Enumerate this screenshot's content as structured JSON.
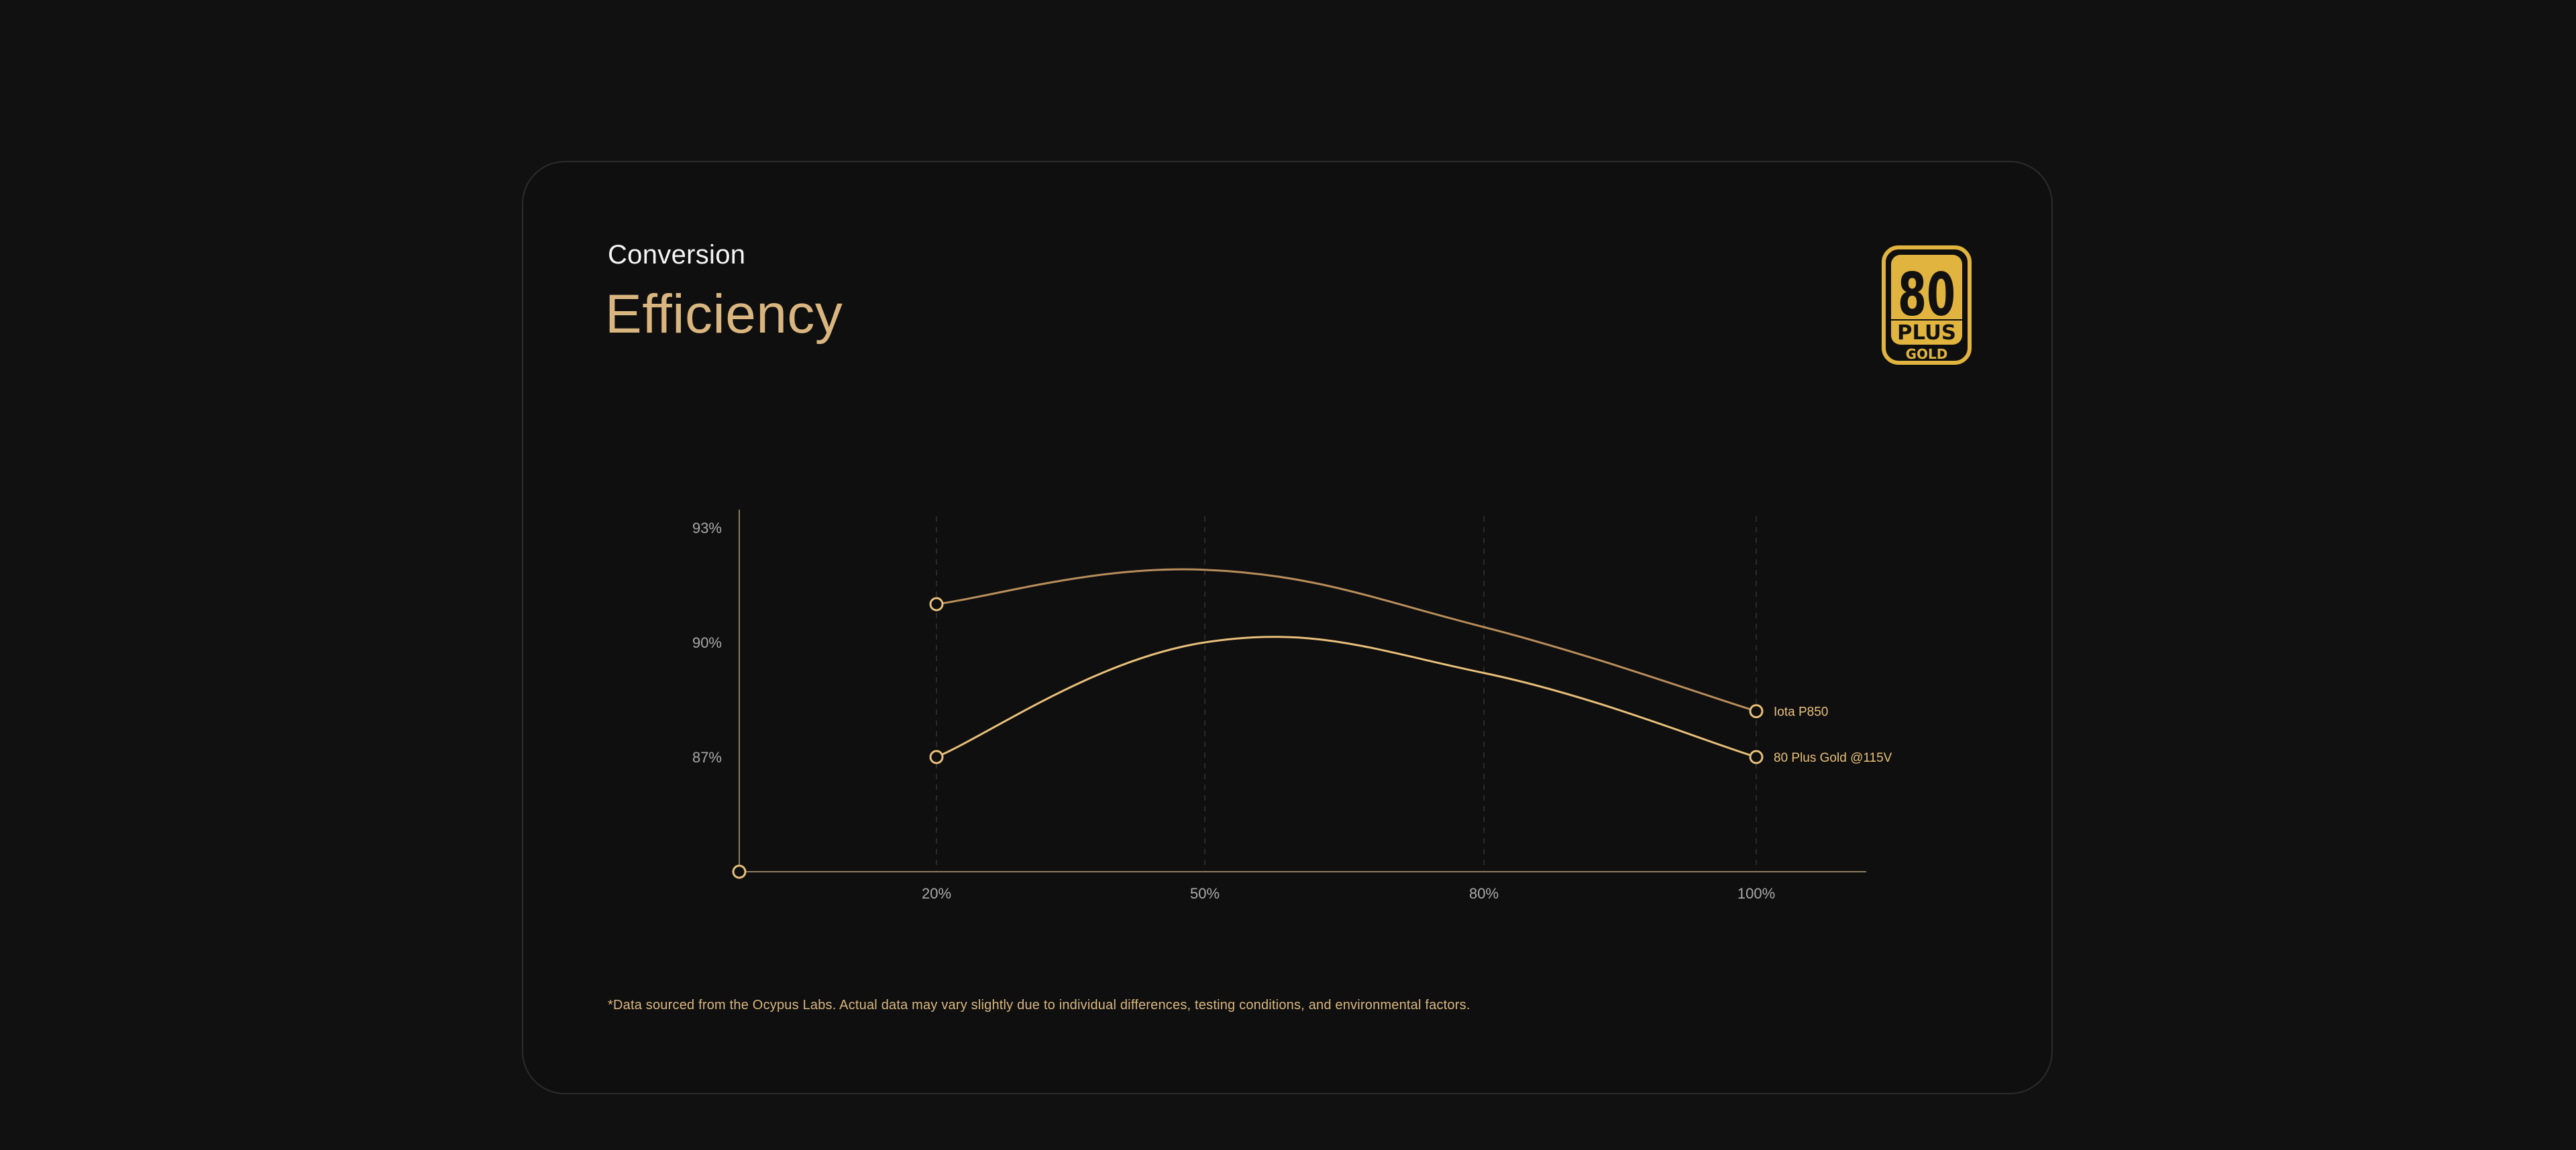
{
  "header": {
    "eyebrow": "Conversion",
    "title": "Efficiency"
  },
  "badge": {
    "top": "80",
    "middle": "PLUS",
    "bottom": "GOLD",
    "color": "#e0b43e"
  },
  "colors": {
    "accent": "#d9b67f",
    "series_primary": "#b98e5a",
    "series_secondary": "#e8c07a",
    "axis": "#8d7c60",
    "gridline": "#2a2a2b",
    "tick_text": "#a9a9a9"
  },
  "chart_data": {
    "type": "line",
    "x": [
      "20%",
      "50%",
      "80%",
      "100%"
    ],
    "ylim": [
      84,
      93
    ],
    "y_ticks": [
      {
        "label": "93%",
        "value": 93
      },
      {
        "label": "90%",
        "value": 90
      },
      {
        "label": "87%",
        "value": 87
      }
    ],
    "grid": "vertical-dashed",
    "legend": "end-of-line",
    "series": [
      {
        "name": "Iota P850",
        "values": [
          91.0,
          91.9,
          90.4,
          88.2
        ]
      },
      {
        "name": "80 Plus Gold @115V",
        "values": [
          87.0,
          90.0,
          89.2,
          87.0
        ]
      }
    ]
  },
  "footnote": "*Data sourced from the Ocypus Labs. Actual data may vary slightly due to individual differences, testing conditions, and environmental factors."
}
